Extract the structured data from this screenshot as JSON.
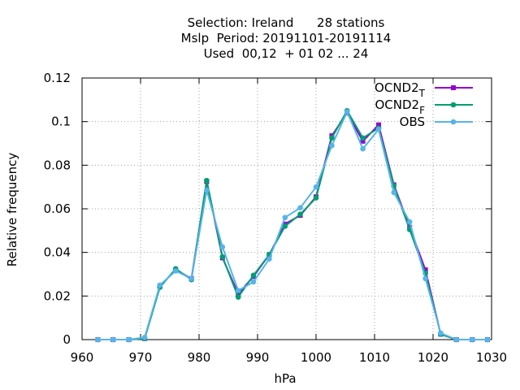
{
  "chart_data": {
    "type": "line",
    "title_lines": [
      "Selection: Ireland      28 stations",
      "Mslp  Period: 20191101-20191114",
      "Used  00,12  + 01 02 ... 24"
    ],
    "xlabel": "hPa",
    "ylabel": "Relative frequency",
    "xlim": [
      960,
      1030
    ],
    "ylim": [
      0,
      0.12
    ],
    "xticks": [
      "960",
      "970",
      "980",
      "990",
      "1000",
      "1010",
      "1020",
      "1030"
    ],
    "yticks": [
      "0",
      "0.02",
      "0.04",
      "0.06",
      "0.08",
      "0.1",
      "0.12"
    ],
    "grid": true,
    "legend_position": "top-right",
    "series": [
      {
        "name": "OCND2",
        "subscript": "T",
        "color": "#9400d3",
        "marker": "square",
        "x": [
          962.7,
          965.3,
          968.0,
          970.7,
          973.3,
          976.0,
          978.7,
          981.3,
          984.0,
          986.7,
          989.3,
          992.0,
          994.7,
          997.3,
          1000.0,
          1002.7,
          1005.3,
          1008.0,
          1010.7,
          1013.3,
          1016.0,
          1018.7,
          1021.3,
          1024.0,
          1026.7,
          1029.3
        ],
        "y": [
          0,
          0,
          0,
          0.0005,
          0.0245,
          0.032,
          0.028,
          0.0725,
          0.0375,
          0.021,
          0.029,
          0.039,
          0.053,
          0.057,
          0.0655,
          0.0935,
          0.104,
          0.091,
          0.0985,
          0.071,
          0.0515,
          0.032,
          0.0025,
          0,
          0,
          0
        ]
      },
      {
        "name": "OCND2",
        "subscript": "F",
        "color": "#009e73",
        "marker": "circle",
        "x": [
          962.7,
          965.3,
          968.0,
          970.7,
          973.3,
          976.0,
          978.7,
          981.3,
          984.0,
          986.7,
          989.3,
          992.0,
          994.7,
          997.3,
          1000.0,
          1002.7,
          1005.3,
          1008.0,
          1010.7,
          1013.3,
          1016.0,
          1018.7,
          1021.3,
          1024.0,
          1026.7,
          1029.3
        ],
        "y": [
          0,
          0,
          0,
          0.0005,
          0.024,
          0.0325,
          0.0275,
          0.073,
          0.038,
          0.0195,
          0.0295,
          0.039,
          0.052,
          0.0575,
          0.065,
          0.0925,
          0.105,
          0.0925,
          0.097,
          0.0705,
          0.0505,
          0.0305,
          0.0025,
          0,
          0,
          0
        ]
      },
      {
        "name": "OBS",
        "subscript": "",
        "color": "#56b4e9",
        "marker": "circle",
        "x": [
          962.7,
          965.3,
          968.0,
          970.7,
          973.3,
          976.0,
          978.7,
          981.3,
          984.0,
          986.7,
          989.3,
          992.0,
          994.7,
          997.3,
          1000.0,
          1002.7,
          1005.3,
          1008.0,
          1010.7,
          1013.3,
          1016.0,
          1018.7,
          1021.3,
          1024.0,
          1026.7,
          1029.3
        ],
        "y": [
          0,
          0,
          0,
          0.001,
          0.025,
          0.0315,
          0.028,
          0.0685,
          0.0425,
          0.0225,
          0.0265,
          0.037,
          0.056,
          0.0605,
          0.07,
          0.089,
          0.1045,
          0.0875,
          0.0965,
          0.0675,
          0.054,
          0.028,
          0.003,
          0,
          0,
          0
        ]
      }
    ]
  }
}
